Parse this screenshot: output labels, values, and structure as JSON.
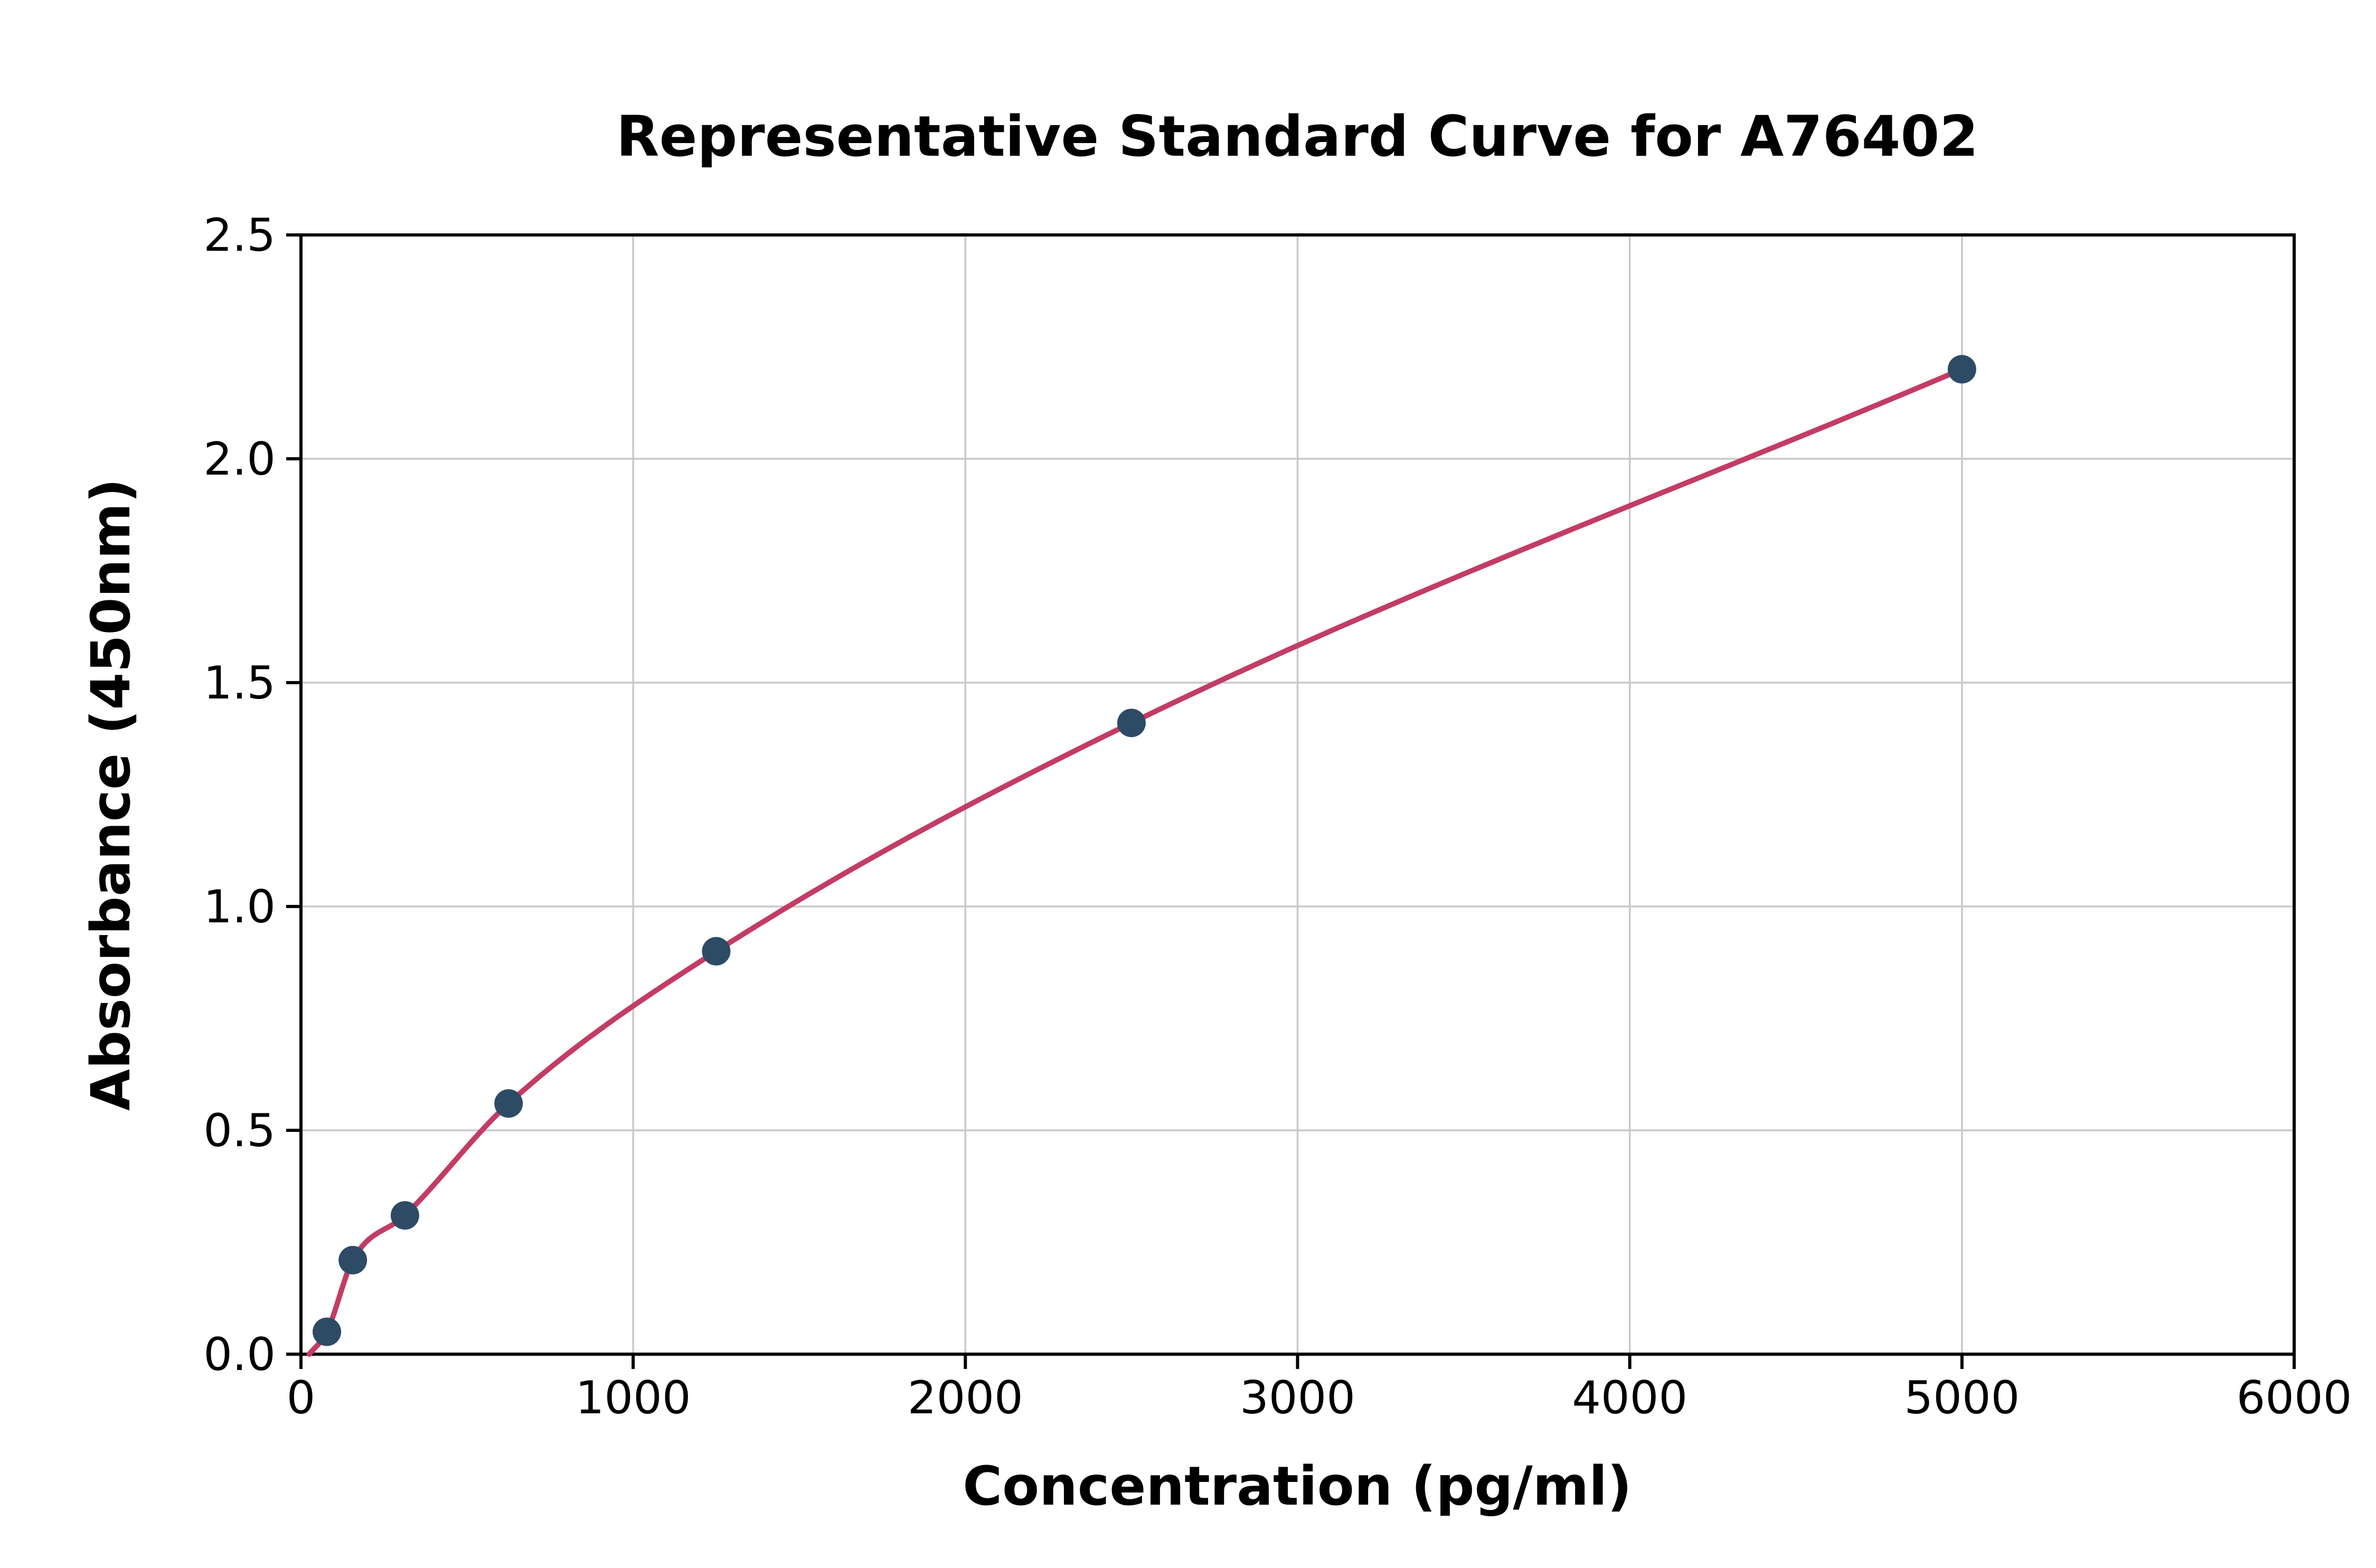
{
  "chart_data": {
    "type": "scatter",
    "title": "Representative Standard Curve for A76402",
    "xlabel": "Concentration (pg/ml)",
    "ylabel": "Absorbance (450nm)",
    "xlim": [
      0,
      6000
    ],
    "ylim": [
      0,
      2.5
    ],
    "grid": true,
    "legend": "none",
    "x_ticks": {
      "values": [
        0,
        1000,
        2000,
        3000,
        4000,
        5000,
        6000
      ],
      "labels": [
        "0",
        "1000",
        "2000",
        "3000",
        "4000",
        "5000",
        "6000"
      ]
    },
    "y_ticks": {
      "values": [
        0,
        0.5,
        1.0,
        1.5,
        2.0,
        2.5
      ],
      "labels": [
        "0.0",
        "0.5",
        "1.0",
        "1.5",
        "2.0",
        "2.5"
      ]
    },
    "points": [
      {
        "x": 78,
        "y": 0.05
      },
      {
        "x": 156,
        "y": 0.21
      },
      {
        "x": 313,
        "y": 0.31
      },
      {
        "x": 625,
        "y": 0.56
      },
      {
        "x": 1250,
        "y": 0.9
      },
      {
        "x": 2500,
        "y": 1.41
      },
      {
        "x": 5000,
        "y": 2.2
      }
    ],
    "fit_curve": {
      "start_anchor": {
        "x": 25,
        "y": 0.0
      }
    },
    "colors": {
      "curve": "#c33c64",
      "points": "#2e4b66",
      "grid": "#c9c9c9",
      "axis": "#000000",
      "background": "#ffffff"
    }
  }
}
